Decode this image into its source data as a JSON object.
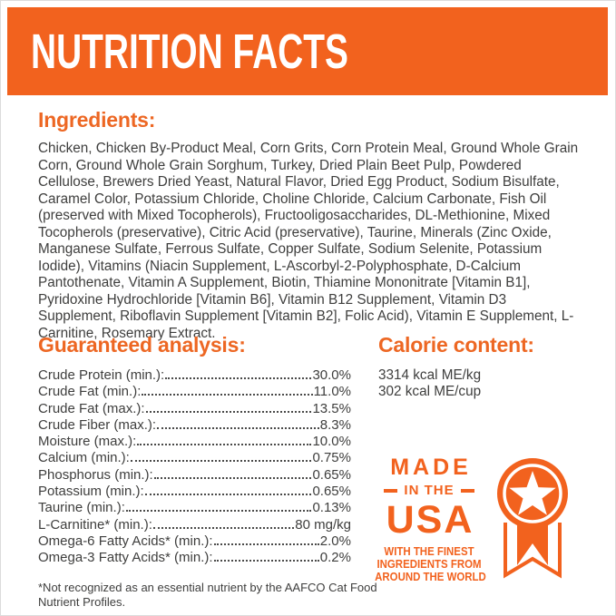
{
  "colors": {
    "accent_orange": "#F2621E",
    "heading_orange": "#ED6723",
    "body_text": "#3E3E3D",
    "background": "#FFFFFF",
    "banner_text": "#FFFFFF"
  },
  "banner": {
    "title": "NUTRITION FACTS"
  },
  "ingredients": {
    "heading": "Ingredients:",
    "text": "Chicken, Chicken By-Product Meal, Corn Grits, Corn Protein Meal, Ground Whole Grain Corn, Ground Whole Grain Sorghum, Turkey, Dried Plain Beet Pulp, Powdered Cellulose, Brewers Dried Yeast, Natural Flavor, Dried Egg Product, Sodium Bisulfate, Caramel Color, Potassium Chloride, Choline Chloride, Calcium Carbonate, Fish Oil (preserved with Mixed Tocopherols), Fructooligosaccharides, DL-Methionine, Mixed Tocopherols (preservative), Citric Acid (preservative), Taurine, Minerals (Zinc Oxide, Manganese Sulfate, Ferrous Sulfate, Copper Sulfate, Sodium Selenite, Potassium Iodide), Vitamins (Niacin Supplement, L-Ascorbyl-2-Polyphosphate, D-Calcium Pantothenate, Vitamin A Supplement, Biotin, Thiamine Mononitrate [Vitamin B1], Pyridoxine Hydrochloride [Vitamin B6], Vitamin B12 Supplement, Vitamin D3 Supplement, Riboflavin Supplement [Vitamin B2], Folic Acid), Vitamin E Supplement, L-Carnitine, Rosemary Extract."
  },
  "guaranteed_analysis": {
    "heading": "Guaranteed analysis:",
    "rows": [
      {
        "label": "Crude Protein (min.):",
        "value": "30.0%"
      },
      {
        "label": "Crude Fat (min.):",
        "value": "11.0%"
      },
      {
        "label": "Crude Fat (max.):",
        "value": "13.5%"
      },
      {
        "label": "Crude Fiber (max.):",
        "value": "8.3%"
      },
      {
        "label": "Moisture (max.):",
        "value": "10.0%"
      },
      {
        "label": "Calcium (min.):",
        "value": "0.75%"
      },
      {
        "label": "Phosphorus (min.):",
        "value": "0.65%"
      },
      {
        "label": "Potassium (min.):",
        "value": "0.65%"
      },
      {
        "label": "Taurine (min.):",
        "value": "0.13%"
      },
      {
        "label": "L-Carnitine* (min.):",
        "value": "80 mg/kg"
      },
      {
        "label": "Omega-6 Fatty Acids* (min.):",
        "value": "2.0%"
      },
      {
        "label": "Omega-3 Fatty Acids* (min.):",
        "value": "0.2%"
      }
    ],
    "footnote": "*Not recognized as an essential nutrient by the AAFCO Cat Food Nutrient Profiles."
  },
  "calorie_content": {
    "heading": "Calorie content:",
    "lines": [
      "3314 kcal ME/kg",
      "302 kcal ME/cup"
    ]
  },
  "made_in_usa_badge": {
    "word_made": "MADE",
    "word_in_the": "IN THE",
    "word_usa": "USA",
    "tagline_lines": [
      "WITH THE FINEST",
      "INGREDIENTS FROM",
      "AROUND THE WORLD"
    ],
    "icon": "award-medal-star-ribbon-icon"
  }
}
